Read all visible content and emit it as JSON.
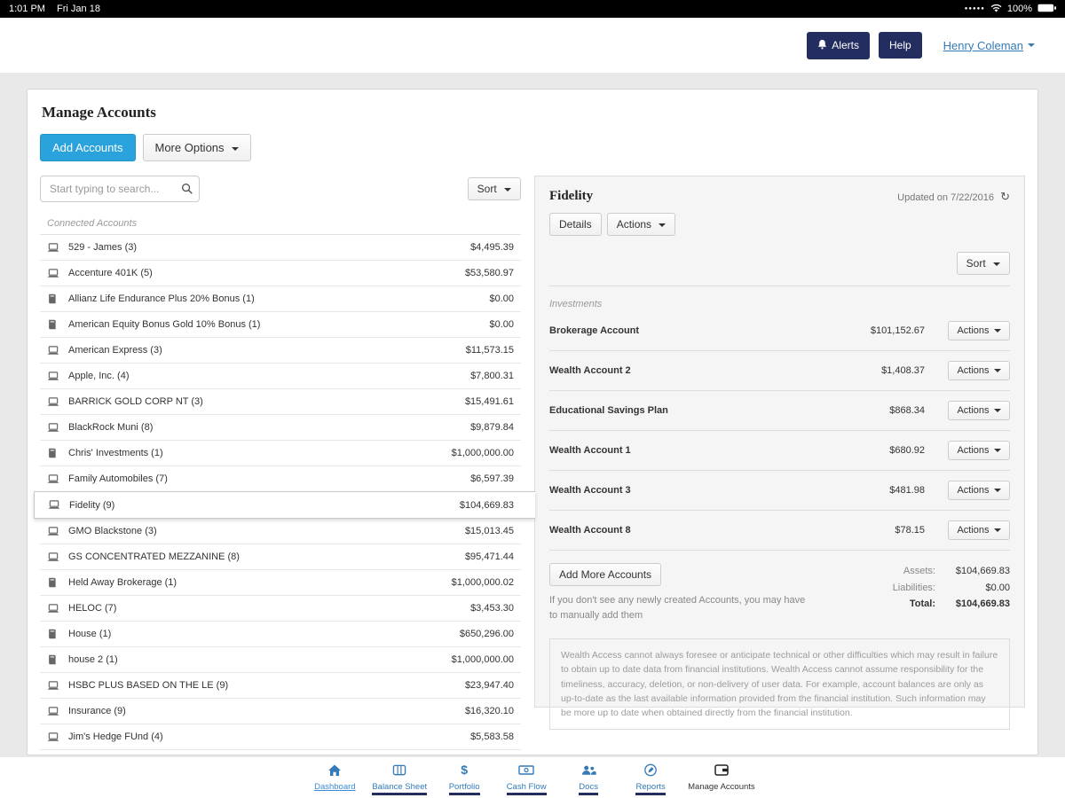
{
  "status_bar": {
    "time": "1:01 PM",
    "date": "Fri Jan 18",
    "battery": "100%"
  },
  "header": {
    "alerts_label": "Alerts",
    "help_label": "Help",
    "user_name": "Henry Coleman"
  },
  "page": {
    "title": "Manage Accounts"
  },
  "toolbar": {
    "add_accounts": "Add Accounts",
    "more_options": "More Options"
  },
  "accounts_panel": {
    "search_placeholder": "Start typing to search...",
    "sort_label": "Sort",
    "group_label": "Connected Accounts",
    "accounts": [
      {
        "name": "529 - James (3)",
        "value": "$4,495.39",
        "icon": "laptop-icon",
        "selected": false
      },
      {
        "name": "Accenture 401K (5)",
        "value": "$53,580.97",
        "icon": "laptop-icon",
        "selected": false
      },
      {
        "name": "Allianz Life Endurance Plus 20% Bonus (1)",
        "value": "$0.00",
        "icon": "book-icon",
        "selected": false
      },
      {
        "name": "American Equity Bonus Gold 10% Bonus (1)",
        "value": "$0.00",
        "icon": "book-icon",
        "selected": false
      },
      {
        "name": "American Express (3)",
        "value": "$11,573.15",
        "icon": "laptop-icon",
        "selected": false
      },
      {
        "name": "Apple, Inc. (4)",
        "value": "$7,800.31",
        "icon": "laptop-icon",
        "selected": false
      },
      {
        "name": "BARRICK GOLD CORP NT (3)",
        "value": "$15,491.61",
        "icon": "laptop-icon",
        "selected": false
      },
      {
        "name": "BlackRock Muni (8)",
        "value": "$9,879.84",
        "icon": "laptop-icon",
        "selected": false
      },
      {
        "name": "Chris' Investments (1)",
        "value": "$1,000,000.00",
        "icon": "book-icon",
        "selected": false
      },
      {
        "name": "Family Automobiles (7)",
        "value": "$6,597.39",
        "icon": "laptop-icon",
        "selected": false
      },
      {
        "name": "Fidelity (9)",
        "value": "$104,669.83",
        "icon": "laptop-icon",
        "selected": true
      },
      {
        "name": "GMO Blackstone (3)",
        "value": "$15,013.45",
        "icon": "laptop-icon",
        "selected": false
      },
      {
        "name": "GS CONCENTRATED MEZZANINE (8)",
        "value": "$95,471.44",
        "icon": "laptop-icon",
        "selected": false
      },
      {
        "name": "Held Away Brokerage (1)",
        "value": "$1,000,000.02",
        "icon": "book-icon",
        "selected": false
      },
      {
        "name": "HELOC (7)",
        "value": "$3,453.30",
        "icon": "laptop-icon",
        "selected": false
      },
      {
        "name": "House (1)",
        "value": "$650,296.00",
        "icon": "book-icon",
        "selected": false
      },
      {
        "name": "house 2 (1)",
        "value": "$1,000,000.00",
        "icon": "book-icon",
        "selected": false
      },
      {
        "name": "HSBC PLUS BASED ON THE LE (9)",
        "value": "$23,947.40",
        "icon": "laptop-icon",
        "selected": false
      },
      {
        "name": "Insurance (9)",
        "value": "$16,320.10",
        "icon": "laptop-icon",
        "selected": false
      },
      {
        "name": "Jim's Hedge FUnd (4)",
        "value": "$5,583.58",
        "icon": "laptop-icon",
        "selected": false
      }
    ]
  },
  "detail_panel": {
    "title": "Fidelity",
    "updated": "Updated on 7/22/2016",
    "details_label": "Details",
    "actions_label": "Actions",
    "sort_label": "Sort",
    "group_label": "Investments",
    "row_actions_label": "Actions",
    "rows": [
      {
        "name": "Brokerage Account",
        "value": "$101,152.67"
      },
      {
        "name": "Wealth Account 2",
        "value": "$1,408.37"
      },
      {
        "name": "Educational Savings Plan",
        "value": "$868.34"
      },
      {
        "name": "Wealth Account 1",
        "value": "$680.92"
      },
      {
        "name": "Wealth Account 3",
        "value": "$481.98"
      },
      {
        "name": "Wealth Account 8",
        "value": "$78.15"
      }
    ],
    "add_more_label": "Add More Accounts",
    "add_more_note": "If you don't see any newly created Accounts, you may have to manually add them",
    "totals": {
      "assets_label": "Assets:",
      "assets_value": "$104,669.83",
      "liabilities_label": "Liabilities:",
      "liabilities_value": "$0.00",
      "total_label": "Total:",
      "total_value": "$104,669.83"
    },
    "disclaimer": "Wealth Access cannot always foresee or anticipate technical or other difficulties which may result in failure to obtain up to date data from financial institutions. Wealth Access cannot assume responsibility for the timeliness, accuracy, deletion, or non-delivery of user data. For example, account balances are only as up-to-date as the last available information provided from the financial institution. Such information may be more up to date when obtained directly from the financial institution."
  },
  "bottom_nav": {
    "items": [
      {
        "label": "Dashboard",
        "icon": "home-icon",
        "style": "active"
      },
      {
        "label": "Balance Sheet",
        "icon": "table-icon",
        "style": "link"
      },
      {
        "label": "Portfolio",
        "icon": "dollar-icon",
        "style": "link"
      },
      {
        "label": "Cash Flow",
        "icon": "banknote-icon",
        "style": "link"
      },
      {
        "label": "Docs",
        "icon": "users-icon",
        "style": "link"
      },
      {
        "label": "Reports",
        "icon": "compose-icon",
        "style": "link"
      },
      {
        "label": "Manage Accounts",
        "icon": "wallet-icon",
        "style": "current"
      }
    ]
  }
}
